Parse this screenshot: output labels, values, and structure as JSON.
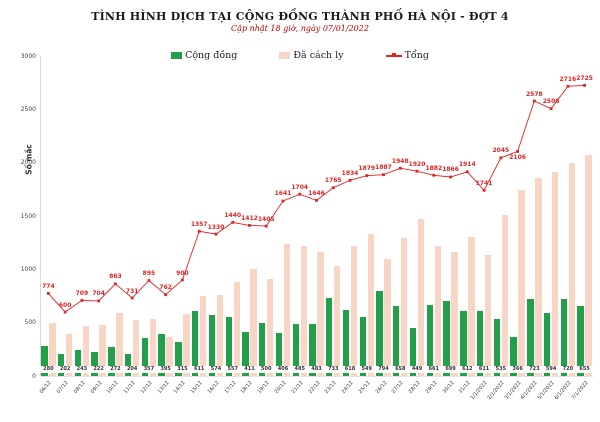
{
  "header": {
    "title": "TÌNH HÌNH DỊCH TẠI CỘNG ĐỒNG THÀNH PHỐ HÀ NỘI - ĐỢT 4",
    "subtitle": "Cập nhật 18 giờ, ngày 07/01/2022"
  },
  "colors": {
    "community_green": "#22a049",
    "isolated_pink": "#f7d6c5",
    "total_red": "#e02424",
    "subtitle_red": "#c00000",
    "axis_text": "#333333"
  },
  "chart_data": {
    "type": "bar",
    "title": "TÌNH HÌNH DỊCH TẠI CỘNG ĐỒNG THÀNH PHỐ HÀ NỘI - ĐỢT 4",
    "subtitle": "Cập nhật 18 giờ, ngày 07/01/2022",
    "xlabel": "",
    "ylabel": "Số mắc",
    "ylim": [
      0,
      3000
    ],
    "yticks": [
      0,
      500,
      1000,
      1500,
      2000,
      2500,
      3000
    ],
    "grid": false,
    "legend_position": "top",
    "categories": [
      "06/12",
      "07/12",
      "08/12",
      "09/12",
      "10/12",
      "11/12",
      "12/12",
      "13/12",
      "14/12",
      "15/12",
      "16/12",
      "17/12",
      "18/12",
      "19/12",
      "20/12",
      "21/12",
      "22/12",
      "23/12",
      "24/12",
      "25/12",
      "26/12",
      "27/12",
      "28/12",
      "29/12",
      "30/12",
      "31/12",
      "1/1/2022",
      "2/1/2022",
      "3/1/2022",
      "4/1/2022",
      "5/1/2022",
      "6/1/2022",
      "7/1/2022"
    ],
    "series": [
      {
        "name": "Cộng đồng",
        "type": "bar",
        "color": "#22a049",
        "values": [
          280,
          202,
          243,
          222,
          272,
          204,
          357,
          395,
          315,
          611,
          574,
          557,
          411,
          500,
          406,
          485,
          483,
          733,
          618,
          549,
          794,
          658,
          449,
          661,
          699,
          612,
          611,
          535,
          366,
          723,
          594,
          720,
          655
        ]
      },
      {
        "name": "Đã cách ly",
        "type": "bar",
        "color": "#f7d6c5",
        "values": [
          494,
          398,
          466,
          482,
          591,
          527,
          538,
          367,
          585,
          746,
          756,
          883,
          1001,
          905,
          1235,
          1219,
          1163,
          1032,
          1216,
          1330,
          1093,
          1290,
          1471,
          1221,
          1167,
          1302,
          1130,
          1510,
          1740,
          1855,
          1912,
          1996,
          2070
        ]
      },
      {
        "name": "Tổng",
        "type": "line",
        "color": "#e02424",
        "values": [
          774,
          600,
          709,
          704,
          863,
          731,
          895,
          762,
          900,
          1357,
          1330,
          1440,
          1412,
          1405,
          1641,
          1704,
          1646,
          1765,
          1834,
          1879,
          1887,
          1948,
          1920,
          1882,
          1866,
          1914,
          1741,
          2045,
          2106,
          2578,
          2506,
          2716,
          2725
        ]
      }
    ]
  }
}
